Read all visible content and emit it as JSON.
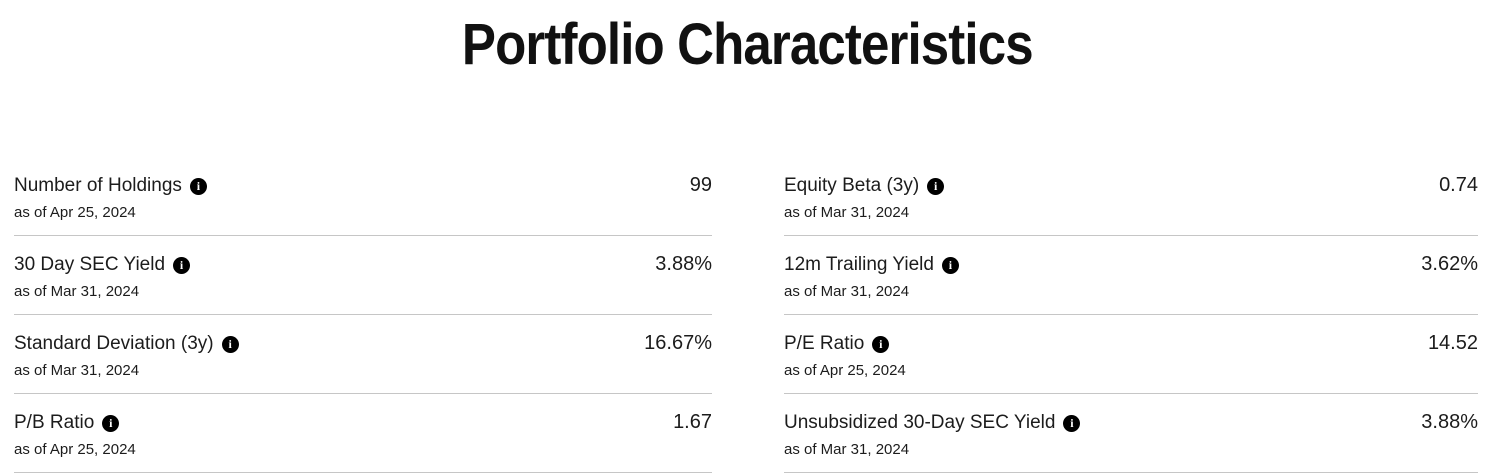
{
  "page": {
    "title": "Portfolio Characteristics"
  },
  "colors": {
    "background": "#ffffff",
    "text": "#1c1c1c",
    "title": "#111111",
    "divider": "#c6c6c6",
    "info_icon_bg": "#000000",
    "info_icon_fg": "#ffffff"
  },
  "icons": {
    "info_glyph": "i"
  },
  "columns": [
    {
      "rows": [
        {
          "label": "Number of Holdings",
          "value": "99",
          "as_of": "as of Apr 25, 2024"
        },
        {
          "label": "30 Day SEC Yield",
          "value": "3.88%",
          "as_of": "as of Mar 31, 2024"
        },
        {
          "label": "Standard Deviation (3y)",
          "value": "16.67%",
          "as_of": "as of Mar 31, 2024"
        },
        {
          "label": "P/B Ratio",
          "value": "1.67",
          "as_of": "as of Apr 25, 2024"
        }
      ]
    },
    {
      "rows": [
        {
          "label": "Equity Beta (3y)",
          "value": "0.74",
          "as_of": "as of Mar 31, 2024"
        },
        {
          "label": "12m Trailing Yield",
          "value": "3.62%",
          "as_of": "as of Mar 31, 2024"
        },
        {
          "label": "P/E Ratio",
          "value": "14.52",
          "as_of": "as of Apr 25, 2024"
        },
        {
          "label": "Unsubsidized 30-Day SEC Yield",
          "value": "3.88%",
          "as_of": "as of Mar 31, 2024"
        }
      ]
    }
  ]
}
